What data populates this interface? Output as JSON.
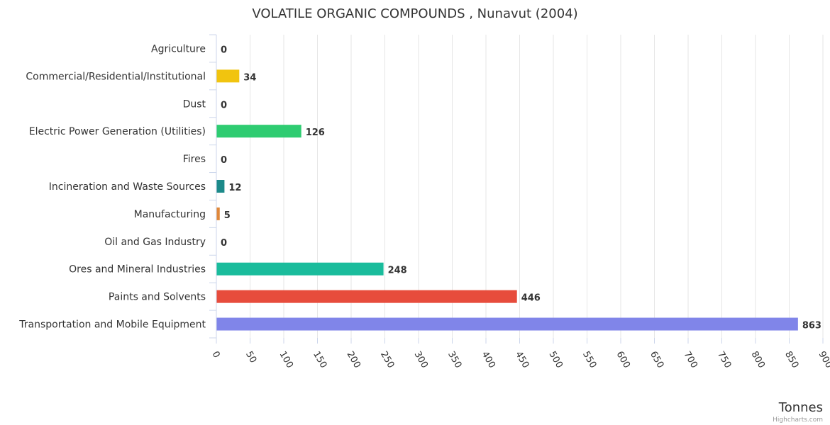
{
  "chart_data": {
    "type": "bar",
    "orientation": "horizontal",
    "title": "VOLATILE ORGANIC COMPOUNDS , Nunavut (2004)",
    "xlabel": "Tonnes",
    "ylabel": "",
    "xlim": [
      0,
      900
    ],
    "tick_step": 50,
    "grid": true,
    "categories": [
      "Agriculture",
      "Commercial/Residential/Institutional",
      "Dust",
      "Electric Power Generation (Utilities)",
      "Fires",
      "Incineration and Waste Sources",
      "Manufacturing",
      "Oil and Gas Industry",
      "Ores and Mineral Industries",
      "Paints and Solvents",
      "Transportation and Mobile Equipment"
    ],
    "values": [
      0,
      34,
      0,
      126,
      0,
      12,
      5,
      0,
      248,
      446,
      863
    ],
    "colors": [
      "#8085e9",
      "#f1c40f",
      "#8085e9",
      "#2ecc71",
      "#8085e9",
      "#1c8a8a",
      "#e0883a",
      "#8085e9",
      "#1abc9c",
      "#e74c3c",
      "#8085e9"
    ]
  },
  "credit": "Highcharts.com"
}
